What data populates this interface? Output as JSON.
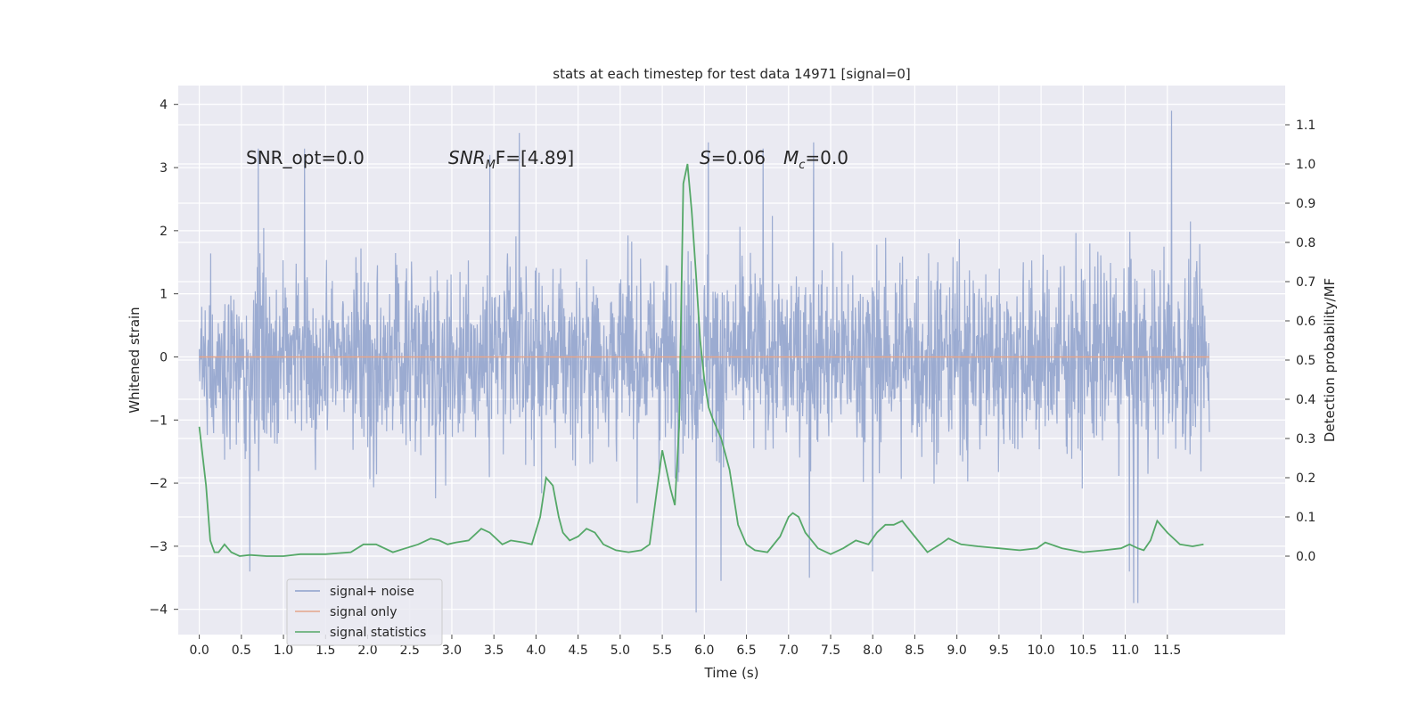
{
  "chart_data": {
    "type": "line",
    "title": "stats at each timestep for test data 14971 [signal=0]",
    "xlabel": "Time (s)",
    "ylabel": "Whitened strain",
    "y2label": "Detection probability/MF",
    "xlim": [
      -0.25,
      12.9
    ],
    "ylim": [
      -4.4,
      4.3
    ],
    "y2lim": [
      -0.2,
      1.2
    ],
    "x_ticks": [
      0.0,
      0.5,
      1.0,
      1.5,
      2.0,
      2.5,
      3.0,
      3.5,
      4.0,
      4.5,
      5.0,
      5.5,
      6.0,
      6.5,
      7.0,
      7.5,
      8.0,
      8.5,
      9.0,
      9.5,
      10.0,
      10.5,
      11.0,
      11.5
    ],
    "x_tick_labels": [
      "0.0",
      "0.5",
      "1.0",
      "1.5",
      "2.0",
      "2.5",
      "3.0",
      "3.5",
      "4.0",
      "4.5",
      "5.0",
      "5.5",
      "6.0",
      "6.5",
      "7.0",
      "7.5",
      "8.0",
      "8.5",
      "9.0",
      "9.5",
      "10.0",
      "10.5",
      "11.0",
      "11.5"
    ],
    "y_ticks": [
      -4,
      -3,
      -2,
      -1,
      0,
      1,
      2,
      3,
      4
    ],
    "y_tick_labels": [
      "−4",
      "−3",
      "−2",
      "−1",
      "0",
      "1",
      "2",
      "3",
      "4"
    ],
    "y2_ticks": [
      0.0,
      0.1,
      0.2,
      0.3,
      0.4,
      0.5,
      0.6,
      0.7,
      0.8,
      0.9,
      1.0,
      1.1
    ],
    "y2_tick_labels": [
      "0.0",
      "0.1",
      "0.2",
      "0.3",
      "0.4",
      "0.5",
      "0.6",
      "0.7",
      "0.8",
      "0.9",
      "1.0",
      "1.1"
    ],
    "grid": true,
    "legend_position": "bottom-left",
    "legend": [
      {
        "label": "signal+ noise",
        "color": "#8da0cb"
      },
      {
        "label": "signal only",
        "color": "#e5a58a"
      },
      {
        "label": "signal statistics",
        "color": "#55a868"
      }
    ],
    "annotations": {
      "snr_opt": "SNR_opt=0.0",
      "snr_mf_main": "SNR",
      "snr_mf_sub": "M",
      "snr_mf_rest": "F=[4.89]",
      "s_main": "S",
      "s_rest": "=0.06",
      "mc_main": "M",
      "mc_sub": "c",
      "mc_rest": "=0.0"
    },
    "signal_noise": {
      "x_range": [
        0.0,
        12.0
      ],
      "band_upper_approx": 2.2,
      "band_lower_approx": -2.2,
      "peaks": [
        {
          "x": 0.7,
          "y": 3.3
        },
        {
          "x": 1.25,
          "y": 3.3
        },
        {
          "x": 3.45,
          "y": 3.2
        },
        {
          "x": 3.8,
          "y": 3.55
        },
        {
          "x": 6.05,
          "y": 3.4
        },
        {
          "x": 6.7,
          "y": 3.3
        },
        {
          "x": 7.3,
          "y": 3.4
        },
        {
          "x": 11.55,
          "y": 3.9
        },
        {
          "x": 0.6,
          "y": -3.4
        },
        {
          "x": 5.9,
          "y": -4.05
        },
        {
          "x": 6.2,
          "y": -3.55
        },
        {
          "x": 7.25,
          "y": -3.5
        },
        {
          "x": 8.0,
          "y": -3.4
        },
        {
          "x": 11.05,
          "y": -3.4
        },
        {
          "x": 11.1,
          "y": -3.9
        },
        {
          "x": 11.15,
          "y": -3.9
        }
      ]
    },
    "signal_only": {
      "x": [
        0.0,
        12.0
      ],
      "y": [
        0.0,
        0.0
      ]
    },
    "signal_statistics": {
      "x": [
        0.0,
        0.08,
        0.13,
        0.18,
        0.23,
        0.3,
        0.38,
        0.48,
        0.6,
        0.8,
        1.0,
        1.2,
        1.5,
        1.8,
        1.95,
        2.1,
        2.3,
        2.45,
        2.6,
        2.75,
        2.85,
        2.95,
        3.05,
        3.2,
        3.35,
        3.45,
        3.6,
        3.7,
        3.85,
        3.95,
        4.05,
        4.12,
        4.2,
        4.27,
        4.32,
        4.4,
        4.5,
        4.6,
        4.7,
        4.8,
        4.95,
        5.1,
        5.25,
        5.35,
        5.5,
        5.55,
        5.6,
        5.65,
        5.7,
        5.75,
        5.8,
        5.85,
        5.9,
        5.95,
        6.0,
        6.05,
        6.1,
        6.2,
        6.3,
        6.4,
        6.5,
        6.6,
        6.75,
        6.9,
        7.0,
        7.05,
        7.12,
        7.2,
        7.35,
        7.5,
        7.65,
        7.8,
        7.95,
        8.05,
        8.15,
        8.25,
        8.35,
        8.5,
        8.65,
        8.8,
        8.9,
        9.05,
        9.25,
        9.5,
        9.75,
        9.95,
        10.05,
        10.25,
        10.5,
        10.75,
        10.95,
        11.05,
        11.15,
        11.22,
        11.3,
        11.38,
        11.5,
        11.65,
        11.8,
        11.93
      ],
      "y": [
        0.33,
        0.18,
        0.04,
        0.01,
        0.01,
        0.03,
        0.01,
        0.0,
        0.003,
        0.0,
        0.0,
        0.005,
        0.005,
        0.01,
        0.03,
        0.03,
        0.01,
        0.02,
        0.03,
        0.045,
        0.04,
        0.03,
        0.035,
        0.04,
        0.07,
        0.06,
        0.03,
        0.04,
        0.035,
        0.03,
        0.1,
        0.2,
        0.18,
        0.1,
        0.06,
        0.04,
        0.05,
        0.07,
        0.06,
        0.03,
        0.015,
        0.01,
        0.015,
        0.03,
        0.27,
        0.22,
        0.17,
        0.13,
        0.33,
        0.95,
        1.0,
        0.88,
        0.72,
        0.55,
        0.45,
        0.38,
        0.35,
        0.3,
        0.22,
        0.08,
        0.03,
        0.015,
        0.01,
        0.05,
        0.1,
        0.11,
        0.1,
        0.06,
        0.02,
        0.005,
        0.02,
        0.04,
        0.03,
        0.06,
        0.08,
        0.08,
        0.09,
        0.05,
        0.01,
        0.03,
        0.045,
        0.03,
        0.025,
        0.02,
        0.015,
        0.02,
        0.035,
        0.02,
        0.01,
        0.015,
        0.02,
        0.03,
        0.02,
        0.015,
        0.04,
        0.09,
        0.06,
        0.03,
        0.025,
        0.03
      ]
    }
  }
}
